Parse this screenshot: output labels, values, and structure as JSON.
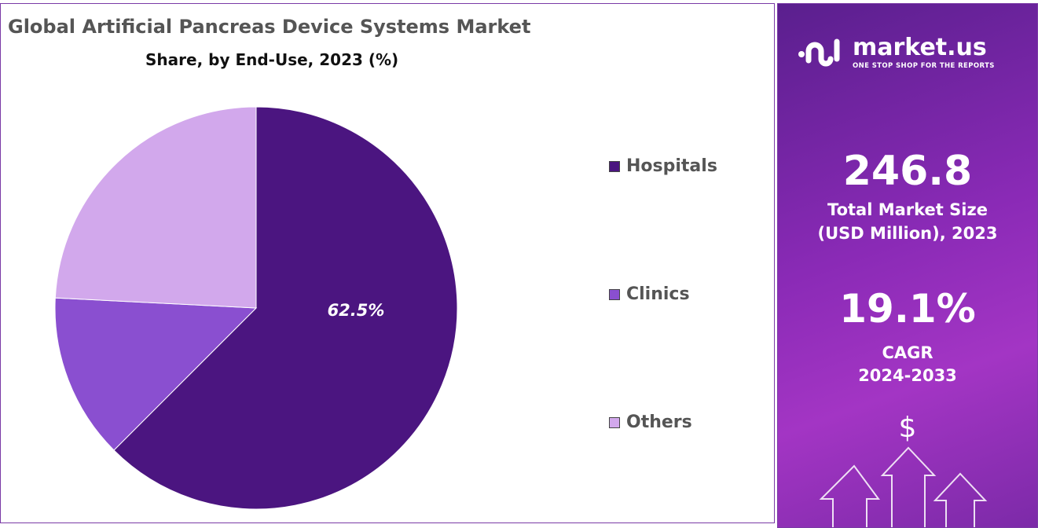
{
  "chart_data": {
    "type": "pie",
    "title": "Global Artificial Pancreas Device Systems Market",
    "subtitle": "Share, by End-Use, 2023 (%)",
    "categories": [
      "Hospitals",
      "Clinics",
      "Others"
    ],
    "values": [
      62.5,
      13.3,
      24.2
    ],
    "colors": [
      "#4b1580",
      "#8a4fd0",
      "#d2a8ec"
    ],
    "data_labels": [
      "62.5%",
      "",
      ""
    ],
    "legend": "right"
  },
  "panel": {
    "logo_text": "market.us",
    "logo_tagline": "ONE STOP SHOP FOR THE REPORTS",
    "market_size": "246.8",
    "market_size_label_1": "Total Market Size",
    "market_size_label_2": "(USD Million), 2023",
    "cagr": "19.1%",
    "cagr_label_1": "CAGR",
    "cagr_label_2": "2024-2033",
    "dollar": "$"
  }
}
